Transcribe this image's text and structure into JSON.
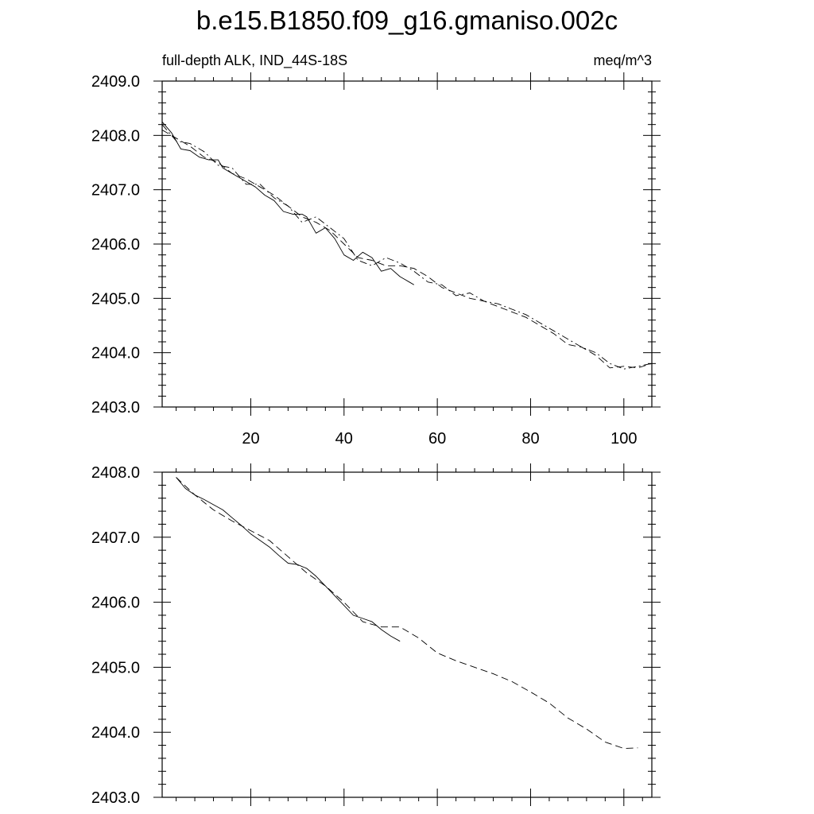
{
  "chart_data": [
    {
      "type": "line",
      "title": "b.e15.B1850.f09_g16.gmaniso.002c",
      "subtitle_left": "full-depth ALK, IND_44S-18S",
      "subtitle_right": "meq/m^3",
      "xlabel": "",
      "ylabel": "",
      "xlim": [
        1,
        106
      ],
      "ylim": [
        2403.0,
        2409.0
      ],
      "xticks": [
        20,
        40,
        60,
        80,
        100
      ],
      "xtick_labels": [
        "20",
        "40",
        "60",
        "80",
        "100"
      ],
      "yticks": [
        2403.0,
        2404.0,
        2405.0,
        2406.0,
        2407.0,
        2408.0,
        2409.0
      ],
      "ytick_labels": [
        "2403.0",
        "2404.0",
        "2405.0",
        "2406.0",
        "2407.0",
        "2408.0",
        "2409.0"
      ],
      "grid": false,
      "series": [
        {
          "style": "solid",
          "x": [
            1,
            3,
            5,
            7,
            9,
            11,
            13,
            14,
            15,
            17,
            19,
            21,
            23,
            25,
            27,
            29,
            31,
            32,
            34,
            36,
            38,
            40,
            42,
            44,
            46,
            48,
            50,
            52,
            54,
            55
          ],
          "y": [
            2408.25,
            2408.05,
            2407.75,
            2407.72,
            2407.6,
            2407.55,
            2407.55,
            2407.4,
            2407.35,
            2407.25,
            2407.15,
            2407.05,
            2406.9,
            2406.8,
            2406.6,
            2406.55,
            2406.55,
            2406.5,
            2406.2,
            2406.3,
            2406.1,
            2405.8,
            2405.7,
            2405.85,
            2405.75,
            2405.5,
            2405.55,
            2405.4,
            2405.3,
            2405.25
          ]
        },
        {
          "style": "dashed",
          "x": [
            1,
            4,
            7,
            10,
            13,
            16,
            19,
            22,
            25,
            28,
            31,
            34,
            37,
            40,
            43,
            46,
            49,
            52,
            55,
            58,
            61,
            64,
            67,
            70,
            73,
            76,
            79,
            82,
            85,
            88,
            91,
            94,
            97,
            100,
            103,
            106
          ],
          "y": [
            2408.1,
            2407.95,
            2407.8,
            2407.6,
            2407.5,
            2407.3,
            2407.2,
            2407.05,
            2406.9,
            2406.7,
            2406.5,
            2406.4,
            2406.25,
            2406.0,
            2405.75,
            2405.7,
            2405.6,
            2405.6,
            2405.55,
            2405.4,
            2405.2,
            2405.1,
            2405.0,
            2404.95,
            2404.85,
            2404.75,
            2404.65,
            2404.5,
            2404.35,
            2404.15,
            2404.1,
            2403.95,
            2403.72,
            2403.75,
            2403.72,
            2403.8
          ]
        },
        {
          "style": "dash-dot",
          "x": [
            1,
            4,
            7,
            10,
            13,
            16,
            19,
            22,
            25,
            28,
            31,
            34,
            37,
            40,
            43,
            46,
            49,
            52,
            55,
            58,
            61,
            64,
            67,
            70,
            73,
            76,
            79,
            82,
            85,
            88,
            91,
            94,
            97,
            100,
            103,
            106
          ],
          "y": [
            2408.2,
            2407.9,
            2407.85,
            2407.7,
            2407.45,
            2407.4,
            2407.1,
            2407.1,
            2406.85,
            2406.7,
            2406.4,
            2406.5,
            2406.3,
            2406.1,
            2405.7,
            2405.6,
            2405.75,
            2405.65,
            2405.5,
            2405.3,
            2405.25,
            2405.05,
            2405.1,
            2404.95,
            2404.9,
            2404.8,
            2404.7,
            2404.55,
            2404.4,
            2404.25,
            2404.1,
            2404.0,
            2403.8,
            2403.7,
            2403.75,
            2403.8
          ]
        }
      ]
    },
    {
      "type": "line",
      "xlabel": "",
      "ylabel": "",
      "xlim": [
        1,
        106
      ],
      "ylim": [
        2403.0,
        2408.0
      ],
      "xticks": [
        20,
        40,
        60,
        80,
        100
      ],
      "xtick_labels": [],
      "yticks": [
        2403.0,
        2404.0,
        2405.0,
        2406.0,
        2407.0,
        2408.0
      ],
      "ytick_labels": [
        "2403.0",
        "2404.0",
        "2405.0",
        "2406.0",
        "2407.0",
        "2408.0"
      ],
      "grid": false,
      "series": [
        {
          "style": "solid",
          "x": [
            4,
            6,
            8,
            10,
            12,
            14,
            16,
            18,
            20,
            22,
            24,
            26,
            28,
            30,
            32,
            34,
            36,
            38,
            40,
            42,
            44,
            46,
            48,
            50,
            52
          ],
          "y": [
            2407.92,
            2407.75,
            2407.65,
            2407.58,
            2407.5,
            2407.42,
            2407.3,
            2407.18,
            2407.05,
            2406.95,
            2406.85,
            2406.72,
            2406.6,
            2406.58,
            2406.52,
            2406.4,
            2406.25,
            2406.1,
            2405.95,
            2405.8,
            2405.75,
            2405.7,
            2405.58,
            2405.48,
            2405.4
          ]
        },
        {
          "style": "dashed",
          "x": [
            4,
            8,
            12,
            16,
            20,
            24,
            28,
            32,
            36,
            40,
            44,
            48,
            52,
            56,
            60,
            64,
            68,
            72,
            76,
            80,
            84,
            88,
            92,
            96,
            100,
            103
          ],
          "y": [
            2407.92,
            2407.65,
            2407.42,
            2407.25,
            2407.1,
            2406.95,
            2406.7,
            2406.45,
            2406.25,
            2406.0,
            2405.7,
            2405.62,
            2405.62,
            2405.45,
            2405.22,
            2405.1,
            2405.0,
            2404.9,
            2404.78,
            2404.62,
            2404.45,
            2404.22,
            2404.05,
            2403.85,
            2403.75,
            2403.76
          ]
        }
      ]
    }
  ]
}
